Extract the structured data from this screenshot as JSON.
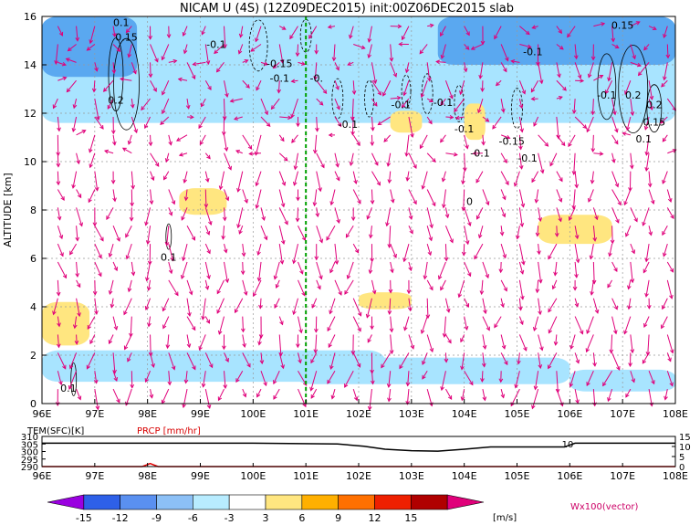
{
  "chart_data": [
    {
      "type": "contour",
      "title": "NICAM U (4S) (12Z09DEC2015) init:00Z06DEC2015 slab",
      "xlabel": "",
      "ylabel": "ALTITUDE [km]",
      "xlim": [
        96,
        108
      ],
      "ylim": [
        0,
        16
      ],
      "xtick_labels": [
        "96E",
        "97E",
        "98E",
        "99E",
        "100E",
        "101E",
        "102E",
        "103E",
        "104E",
        "105E",
        "106E",
        "107E",
        "108E"
      ],
      "ytick_labels": [
        "0",
        "2",
        "4",
        "6",
        "8",
        "10",
        "12",
        "14",
        "16"
      ],
      "grid": true,
      "marker_line": {
        "x": 101.0,
        "color": "#00a000"
      },
      "shaded_regions": [
        {
          "level": "-6 to -3",
          "color": "#a8e4ff",
          "x": [
            96.0,
            102.5
          ],
          "y": [
            0.9,
            2.2
          ]
        },
        {
          "level": "-6 to -3",
          "color": "#a8e4ff",
          "x": [
            100.8,
            106.0
          ],
          "y": [
            0.8,
            1.9
          ]
        },
        {
          "level": "-6 to -3",
          "color": "#a8e4ff",
          "x": [
            106.0,
            108.0
          ],
          "y": [
            0.5,
            1.4
          ]
        },
        {
          "level": "-6 to -3",
          "color": "#a8e4ff",
          "x": [
            96.0,
            108.0
          ],
          "y": [
            11.6,
            16.0
          ]
        },
        {
          "level": "-9 to -6",
          "color": "#5aa8f0",
          "x": [
            103.5,
            108.0
          ],
          "y": [
            14.0,
            16.0
          ]
        },
        {
          "level": "-9 to -6",
          "color": "#5aa8f0",
          "x": [
            96.0,
            97.8
          ],
          "y": [
            13.5,
            16.0
          ]
        },
        {
          "level": "3 to 6",
          "color": "#ffe680",
          "x": [
            98.6,
            99.5
          ],
          "y": [
            7.8,
            8.9
          ]
        },
        {
          "level": "3 to 6",
          "color": "#ffe680",
          "x": [
            105.4,
            106.8
          ],
          "y": [
            6.6,
            7.8
          ]
        },
        {
          "level": "3 to 6",
          "color": "#ffe680",
          "x": [
            96.0,
            96.9
          ],
          "y": [
            2.4,
            4.2
          ]
        },
        {
          "level": "3 to 6",
          "color": "#ffe680",
          "x": [
            102.0,
            103.0
          ],
          "y": [
            3.9,
            4.6
          ]
        },
        {
          "level": "3 to 6",
          "color": "#ffe680",
          "x": [
            102.6,
            103.2
          ],
          "y": [
            11.2,
            12.1
          ]
        },
        {
          "level": "3 to 6",
          "color": "#ffe680",
          "x": [
            104.0,
            104.4
          ],
          "y": [
            10.9,
            12.4
          ]
        }
      ],
      "contour_labels": [
        {
          "text": "0.1",
          "x": 97.5,
          "y": 15.6
        },
        {
          "text": "0.15",
          "x": 97.6,
          "y": 15.0
        },
        {
          "text": "-0.1",
          "x": 99.3,
          "y": 14.7
        },
        {
          "text": "0.2",
          "x": 97.4,
          "y": 12.4
        },
        {
          "text": "0.1",
          "x": 96.5,
          "y": 0.5
        },
        {
          "text": "0.1",
          "x": 98.4,
          "y": 5.9
        },
        {
          "text": "-0.15",
          "x": 100.5,
          "y": 13.9
        },
        {
          "text": "-0.1",
          "x": 100.5,
          "y": 13.3
        },
        {
          "text": "-0.",
          "x": 101.2,
          "y": 13.3
        },
        {
          "text": "-0.1",
          "x": 101.8,
          "y": 11.4
        },
        {
          "text": "-0.1",
          "x": 102.8,
          "y": 12.2
        },
        {
          "text": "-0.1",
          "x": 103.6,
          "y": 12.3
        },
        {
          "text": "-0.1",
          "x": 104.0,
          "y": 11.2
        },
        {
          "text": "-0.1",
          "x": 104.3,
          "y": 10.2
        },
        {
          "text": "-0.15",
          "x": 104.9,
          "y": 10.7
        },
        {
          "text": "-0.1",
          "x": 105.2,
          "y": 10.0
        },
        {
          "text": "-0.1",
          "x": 105.3,
          "y": 14.4
        },
        {
          "text": "-0.1",
          "x": 106.7,
          "y": 12.6
        },
        {
          "text": "0.2",
          "x": 107.2,
          "y": 12.6
        },
        {
          "text": "0.2",
          "x": 107.6,
          "y": 12.2
        },
        {
          "text": "0.15",
          "x": 107.6,
          "y": 11.5
        },
        {
          "text": "0.1",
          "x": 107.4,
          "y": 10.8
        },
        {
          "text": "0.15",
          "x": 107.0,
          "y": 15.5
        },
        {
          "text": "0",
          "x": 104.1,
          "y": 8.2
        }
      ],
      "vector_field": {
        "color": "#e0007a",
        "label": "Wx100(vector)"
      }
    },
    {
      "type": "line",
      "labels": [
        "TEM(SFC)[K]",
        "PRCP [mm/hr]"
      ],
      "xlim": [
        96,
        108
      ],
      "xtick_labels": [
        "96E",
        "97E",
        "98E",
        "99E",
        "100E",
        "101E",
        "102E",
        "103E",
        "104E",
        "105E",
        "106E",
        "107E",
        "108E"
      ],
      "left_axis": {
        "ticks": [
          "290",
          "295",
          "300",
          "305",
          "310"
        ],
        "ylim": [
          290,
          310
        ]
      },
      "right_axis": {
        "ticks": [
          "0",
          "5",
          "10",
          "15"
        ],
        "ylim": [
          0,
          15
        ]
      },
      "annotation": "10",
      "series": [
        {
          "color": "#000000",
          "x": [
            96,
            98,
            100,
            101.6,
            102.1,
            102.5,
            103.0,
            103.5,
            104.0,
            104.5,
            105.0,
            105.5,
            105.9,
            106.1,
            108
          ],
          "y": [
            305.5,
            305.5,
            305.5,
            305.0,
            303.5,
            301.5,
            300.5,
            300.2,
            301.5,
            303.0,
            303.0,
            303.0,
            303.0,
            305.5,
            305.5
          ]
        },
        {
          "color": "#e00000",
          "x": [
            96,
            97.9,
            98.05,
            98.2,
            108
          ],
          "y": [
            290,
            290,
            292,
            290,
            290
          ]
        }
      ]
    },
    {
      "type": "colorbar",
      "tick_labels": [
        "-15",
        "-12",
        "-9",
        "-6",
        "-3",
        "3",
        "6",
        "9",
        "12",
        "15"
      ],
      "unit": "[m/s]",
      "colors": [
        "#9a00e0",
        "#2e60e8",
        "#5a90f0",
        "#8cc0f6",
        "#b8ecff",
        "#ffffff",
        "#ffe680",
        "#ffb000",
        "#ff7000",
        "#ee2000",
        "#b00000",
        "#e0007a"
      ]
    }
  ]
}
